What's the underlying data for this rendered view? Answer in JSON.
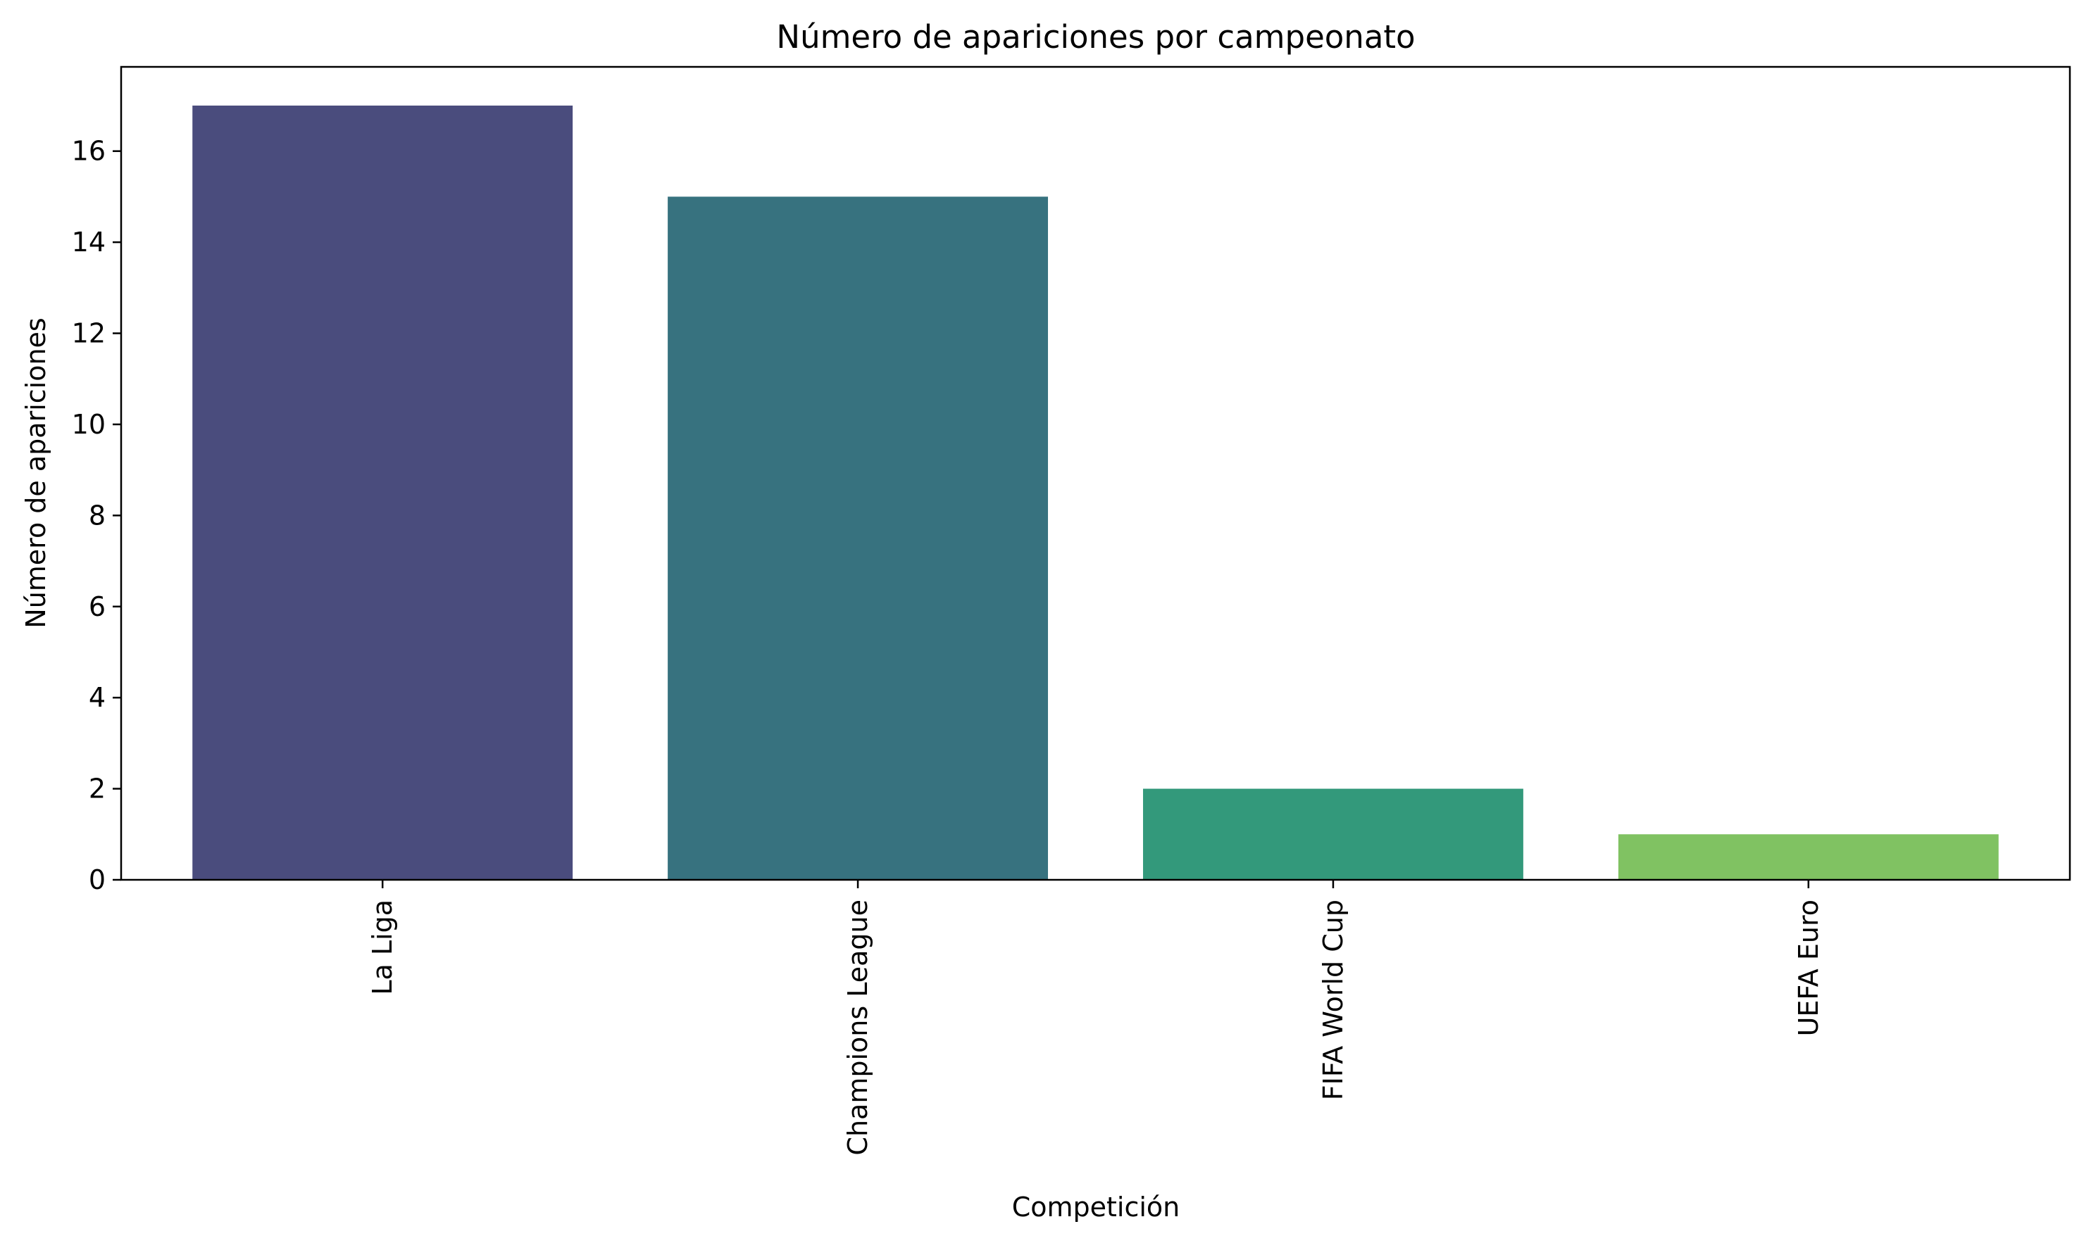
{
  "chart_data": {
    "type": "bar",
    "title": "Número de apariciones por campeonato",
    "xlabel": "Competición",
    "ylabel": "Número de apariciones",
    "categories": [
      "La Liga",
      "Champions League",
      "FIFA World Cup",
      "UEFA Euro"
    ],
    "values": [
      17,
      15,
      2,
      1
    ],
    "colors": [
      "#4a4c7d",
      "#37727f",
      "#33997b",
      "#80c262"
    ],
    "ylim": [
      0,
      17.85
    ],
    "yticks": [
      0,
      2,
      4,
      6,
      8,
      10,
      12,
      14,
      16
    ],
    "grid": false,
    "legend": "none"
  }
}
